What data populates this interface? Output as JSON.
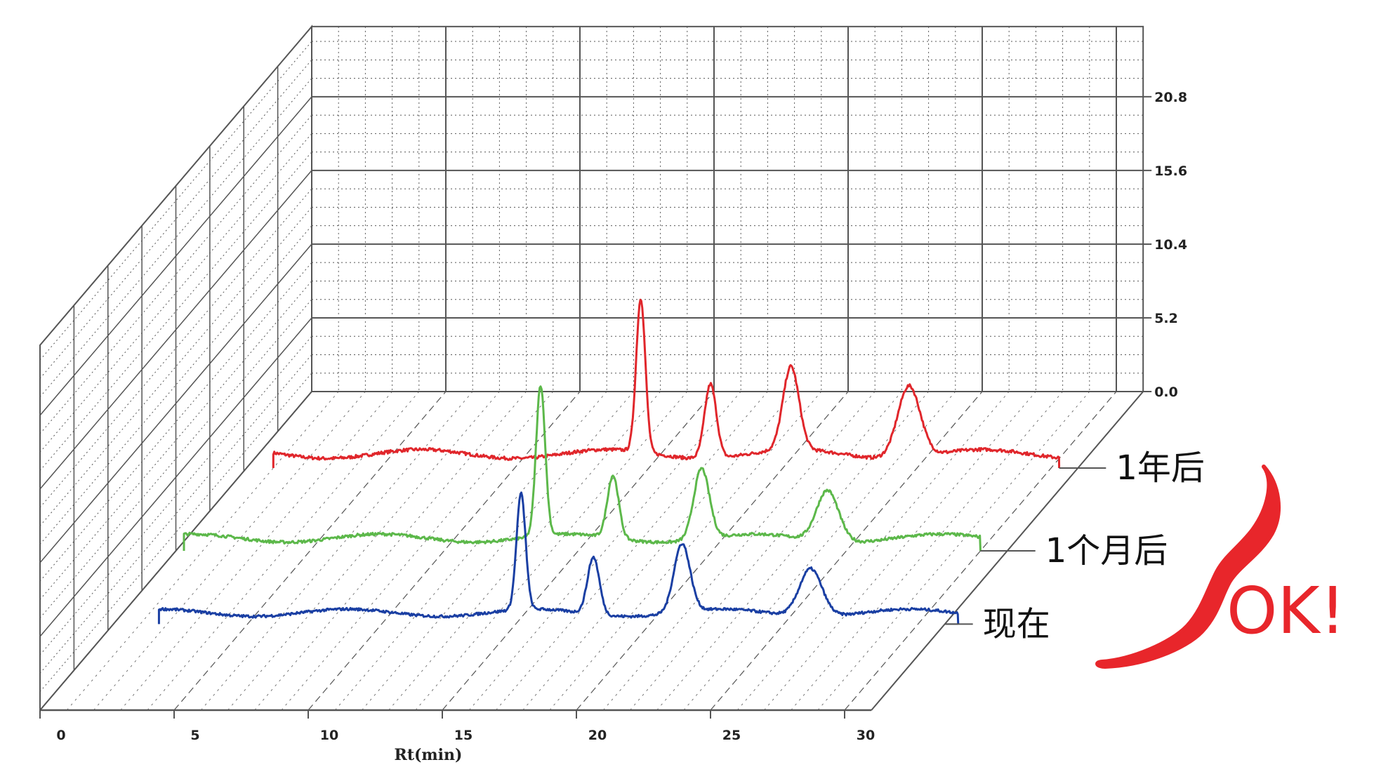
{
  "chart_data": {
    "type": "line",
    "style": "3d-waterfall",
    "xlabel": "Rt(min)",
    "xlim": [
      0,
      31
    ],
    "x_ticks": [
      "0",
      "5",
      "10",
      "15",
      "20",
      "25",
      "30"
    ],
    "z_ticks": [
      "0.0",
      "5.2",
      "10.4",
      "15.6",
      "20.8"
    ],
    "zlim": [
      0,
      20.8
    ],
    "grid": true,
    "colors": {
      "blue": "#1a3fa3",
      "green": "#5cb84a",
      "red": "#e0262b",
      "grid": "#555555",
      "ok": "#e8262b"
    },
    "series": [
      {
        "name": "现在",
        "color": "#1a3fa3",
        "x_start": 1.7,
        "x_end": 31.5,
        "peaks": [
          {
            "x": 15.2,
            "y": 11.2,
            "sigma": 0.17
          },
          {
            "x": 17.9,
            "y": 5.5,
            "sigma": 0.22
          },
          {
            "x": 21.2,
            "y": 6.6,
            "sigma": 0.3
          },
          {
            "x": 26.0,
            "y": 4.6,
            "sigma": 0.42
          }
        ]
      },
      {
        "name": "1个月后",
        "color": "#5cb84a",
        "x_start": 0.3,
        "x_end": 30.0,
        "peaks": [
          {
            "x": 13.6,
            "y": 13.0,
            "sigma": 0.17
          },
          {
            "x": 16.3,
            "y": 5.4,
            "sigma": 0.21
          },
          {
            "x": 19.6,
            "y": 6.1,
            "sigma": 0.29
          },
          {
            "x": 24.3,
            "y": 4.4,
            "sigma": 0.41
          }
        ]
      },
      {
        "name": "1年后",
        "color": "#e0262b",
        "x_start": 1.0,
        "x_end": 30.3,
        "peaks": [
          {
            "x": 14.7,
            "y": 12.0,
            "sigma": 0.17
          },
          {
            "x": 17.3,
            "y": 5.8,
            "sigma": 0.22
          },
          {
            "x": 20.3,
            "y": 6.5,
            "sigma": 0.3
          },
          {
            "x": 24.7,
            "y": 5.6,
            "sigma": 0.42
          }
        ]
      }
    ],
    "annotation": "OK!"
  }
}
